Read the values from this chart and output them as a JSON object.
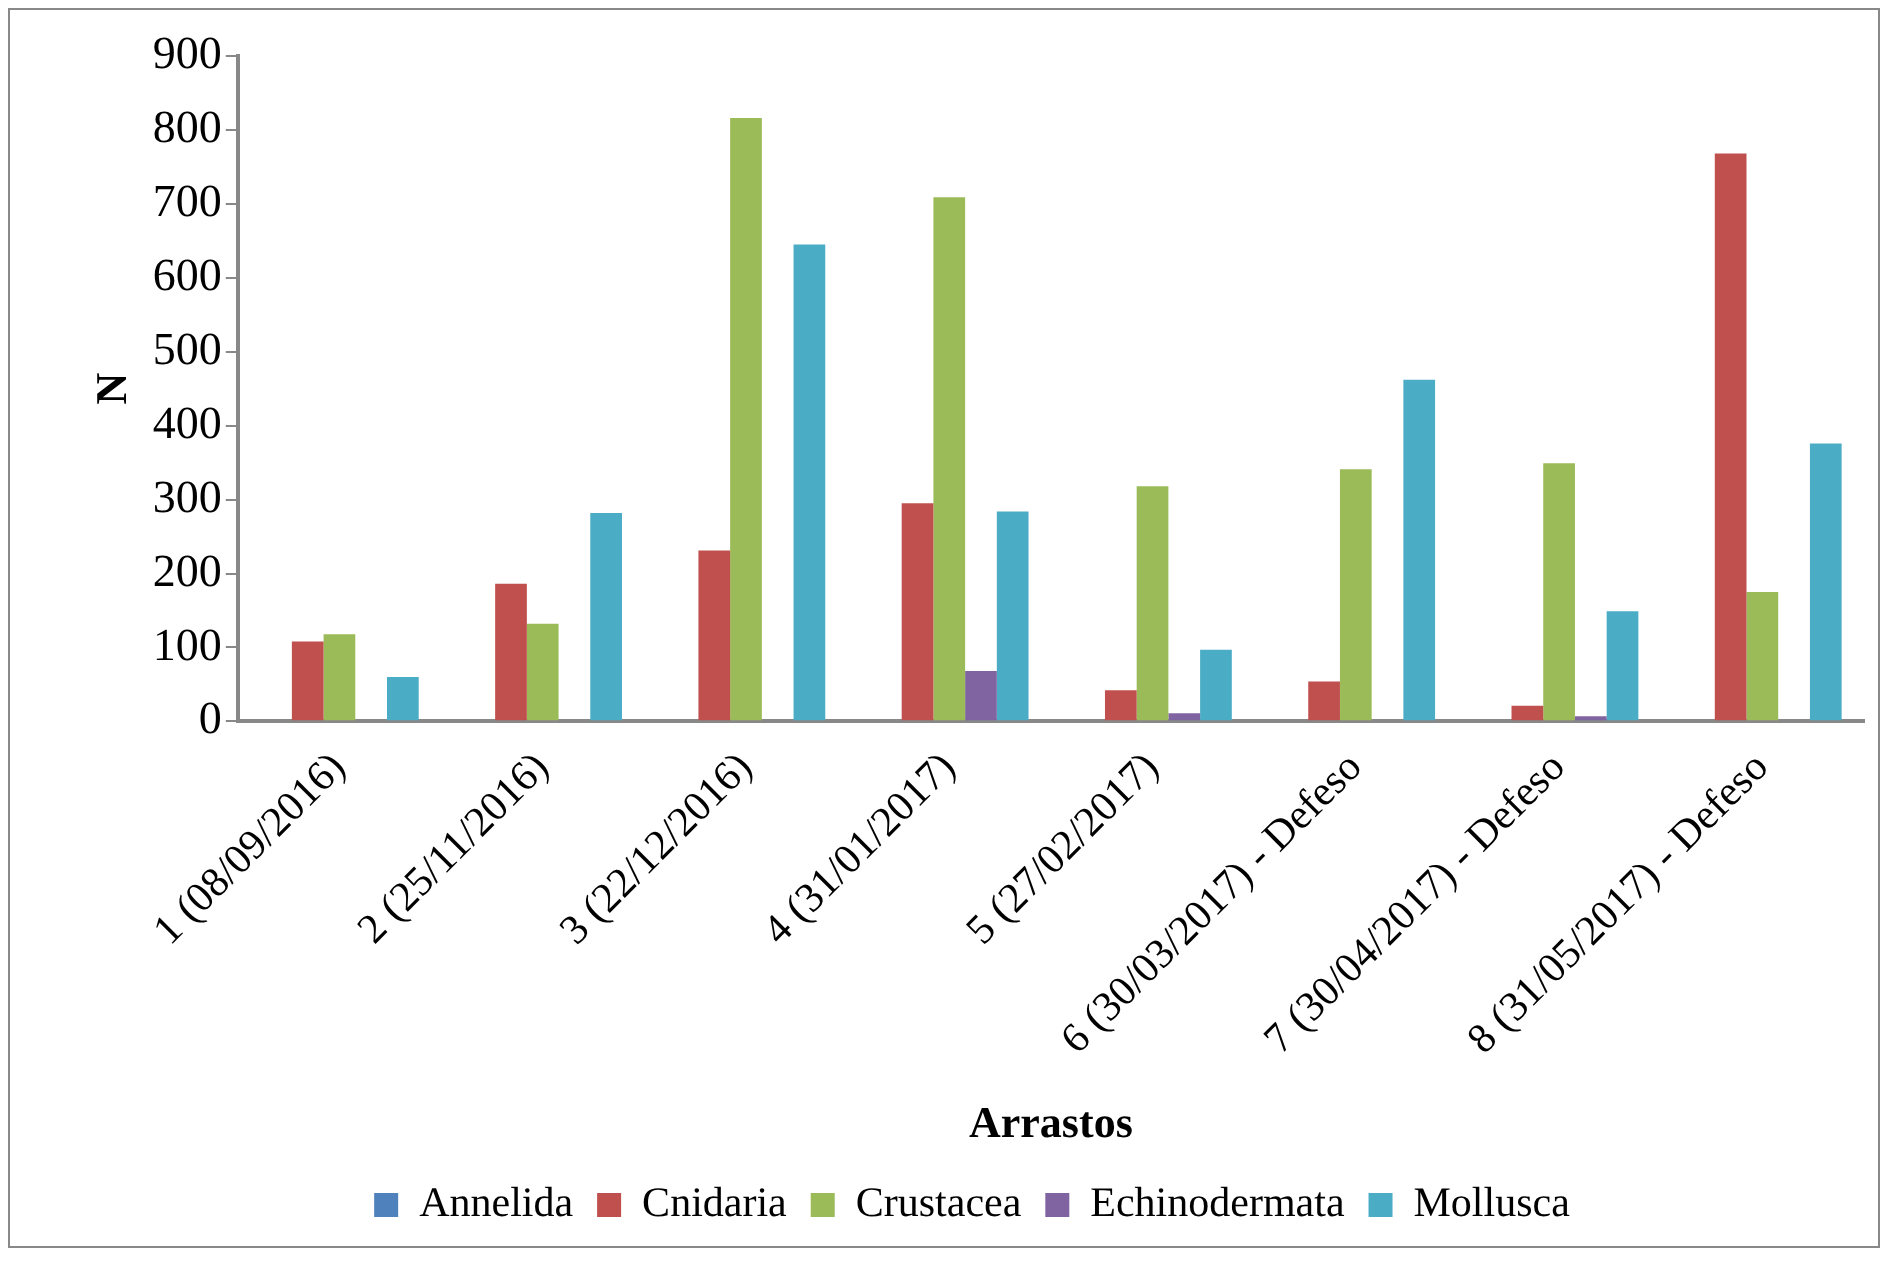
{
  "chart_data": {
    "type": "bar",
    "xlabel": "Arrastos",
    "ylabel": "N",
    "categories": [
      "1 (08/09/2016)",
      "2 (25/11/2016)",
      "3 (22/12/2016)",
      "4 (31/01/2017)",
      "5 (27/02/2017)",
      "6 (30/03/2017) - Defeso",
      "7 (30/04/2017) - Defeso",
      "8 (31/05/2017) - Defeso"
    ],
    "series": [
      {
        "name": "Annelida",
        "color": "#4f81bd",
        "values": [
          0,
          0,
          0,
          0,
          0,
          0,
          0,
          0
        ]
      },
      {
        "name": "Cnidaria",
        "color": "#c0504d",
        "values": [
          108,
          186,
          231,
          295,
          42,
          54,
          21,
          768
        ]
      },
      {
        "name": "Crustacea",
        "color": "#9bbb59",
        "values": [
          118,
          132,
          816,
          709,
          318,
          341,
          349,
          175
        ]
      },
      {
        "name": "Echinodermata",
        "color": "#8064a2",
        "values": [
          0,
          0,
          0,
          68,
          11,
          0,
          7,
          0
        ]
      },
      {
        "name": "Mollusca",
        "color": "#4bacc6",
        "values": [
          60,
          282,
          645,
          284,
          97,
          462,
          149,
          376
        ]
      }
    ],
    "ylim": [
      0,
      900
    ],
    "yticks": [
      0,
      100,
      200,
      300,
      400,
      500,
      600,
      700,
      800,
      900
    ],
    "grid": false,
    "legend": "bottom"
  }
}
